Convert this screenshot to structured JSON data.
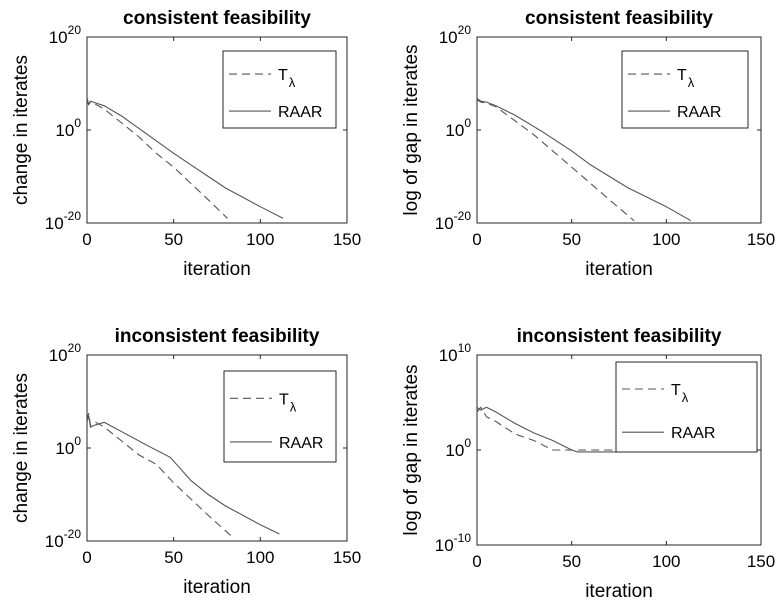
{
  "chart_data": [
    {
      "type": "line",
      "title": "consistent feasibility",
      "xlabel": "iteration",
      "ylabel": "change in iterates",
      "xlim": [
        0,
        150
      ],
      "ylim_exp": [
        -20,
        20
      ],
      "yscale": "log",
      "xticks": [
        "0",
        "50",
        "100",
        "150"
      ],
      "yticks": [
        {
          "base": "10",
          "exp": "20"
        },
        {
          "base": "10",
          "exp": "0"
        },
        {
          "base": "10",
          "exp": "-20"
        }
      ],
      "legend_position": "top-right",
      "series": [
        {
          "name": "T",
          "subscript": "λ",
          "style": "dashed",
          "x": [
            0,
            1,
            2,
            5,
            10,
            20,
            30,
            40,
            50,
            60,
            70,
            81
          ],
          "y_exp": [
            6.5,
            5.5,
            6.0,
            5.5,
            4.5,
            1.5,
            -1.5,
            -5,
            -8,
            -11.5,
            -15,
            -19
          ]
        },
        {
          "name": "RAAR",
          "style": "solid",
          "x": [
            0,
            1,
            2,
            5,
            10,
            20,
            35,
            50,
            60,
            70,
            80,
            90,
            100,
            113
          ],
          "y_exp": [
            7,
            5.5,
            6.2,
            5.8,
            5.2,
            3.0,
            -1.0,
            -5,
            -7.5,
            -10.0,
            -12.5,
            -14.5,
            -16.5,
            -19
          ]
        }
      ]
    },
    {
      "type": "line",
      "title": "consistent feasibility",
      "xlabel": "iteration",
      "ylabel": "log of gap in iterates",
      "xlim": [
        0,
        150
      ],
      "ylim_exp": [
        -20,
        20
      ],
      "yscale": "log",
      "xticks": [
        "0",
        "50",
        "100",
        "150"
      ],
      "yticks": [
        {
          "base": "10",
          "exp": "20"
        },
        {
          "base": "10",
          "exp": "0"
        },
        {
          "base": "10",
          "exp": "-20"
        }
      ],
      "legend_position": "top-right",
      "series": [
        {
          "name": "T",
          "subscript": "λ",
          "style": "dashed",
          "x": [
            0,
            2,
            5,
            10,
            20,
            30,
            40,
            50,
            60,
            70,
            83
          ],
          "y_exp": [
            6.5,
            6.0,
            5.8,
            5.0,
            2.0,
            -1.0,
            -4.5,
            -8,
            -11.5,
            -15,
            -19.5
          ]
        },
        {
          "name": "RAAR",
          "style": "solid",
          "x": [
            0,
            2,
            5,
            10,
            20,
            35,
            50,
            60,
            70,
            80,
            90,
            100,
            113
          ],
          "y_exp": [
            6.8,
            6.2,
            6.0,
            5.2,
            3.2,
            -0.5,
            -4.5,
            -7.5,
            -10.0,
            -12.5,
            -14.5,
            -16.5,
            -19.5
          ]
        }
      ]
    },
    {
      "type": "line",
      "title": "inconsistent feasibility",
      "xlabel": "iteration",
      "ylabel": "change in iterates",
      "xlim": [
        0,
        150
      ],
      "ylim_exp": [
        -20,
        20
      ],
      "yscale": "log",
      "xticks": [
        "0",
        "50",
        "100",
        "150"
      ],
      "yticks": [
        {
          "base": "10",
          "exp": "20"
        },
        {
          "base": "10",
          "exp": "0"
        },
        {
          "base": "10",
          "exp": "-20"
        }
      ],
      "legend_position": "top-right",
      "series": [
        {
          "name": "T",
          "subscript": "λ",
          "style": "dashed",
          "x": [
            0,
            1,
            2,
            5,
            10,
            20,
            30,
            40,
            50,
            60,
            70,
            85
          ],
          "y_exp": [
            6.0,
            7.5,
            4.8,
            5.5,
            4.5,
            1.5,
            -1.5,
            -3.5,
            -7.5,
            -11.0,
            -14.5,
            -19.5
          ]
        },
        {
          "name": "RAAR",
          "style": "solid",
          "x": [
            0,
            1,
            2,
            5,
            10,
            20,
            35,
            48,
            60,
            70,
            80,
            90,
            100,
            111
          ],
          "y_exp": [
            5.5,
            7.0,
            4.5,
            5.0,
            5.5,
            3.5,
            0.5,
            -2.0,
            -7.0,
            -10.0,
            -12.5,
            -14.5,
            -16.5,
            -18.5
          ]
        }
      ]
    },
    {
      "type": "line",
      "title": "inconsistent feasibility",
      "xlabel": "iteration",
      "ylabel": "log of gap in iterates",
      "xlim": [
        0,
        150
      ],
      "ylim_exp": [
        -10,
        10
      ],
      "yscale": "log",
      "xticks": [
        "0",
        "50",
        "100",
        "150"
      ],
      "yticks": [
        {
          "base": "10",
          "exp": "10"
        },
        {
          "base": "10",
          "exp": "0"
        },
        {
          "base": "10",
          "exp": "-10"
        }
      ],
      "legend_position": "top-right",
      "series": [
        {
          "name": "T",
          "subscript": "λ",
          "style": "dashed",
          "x": [
            0,
            2,
            5,
            10,
            20,
            30,
            40,
            50,
            60,
            70,
            80,
            100
          ],
          "y_exp": [
            4.0,
            4.5,
            3.5,
            3.0,
            1.7,
            1.0,
            0.0,
            0.0,
            0.0,
            0.0,
            0.0,
            0.0
          ]
        },
        {
          "name": "RAAR",
          "style": "solid",
          "x": [
            0,
            2,
            5,
            10,
            20,
            30,
            40,
            50,
            53,
            60,
            80,
            100,
            113
          ],
          "y_exp": [
            4.5,
            4.2,
            4.5,
            4.0,
            2.8,
            1.8,
            1.0,
            0.0,
            -0.2,
            -0.2,
            -0.2,
            -0.2,
            -0.2
          ]
        }
      ]
    }
  ]
}
